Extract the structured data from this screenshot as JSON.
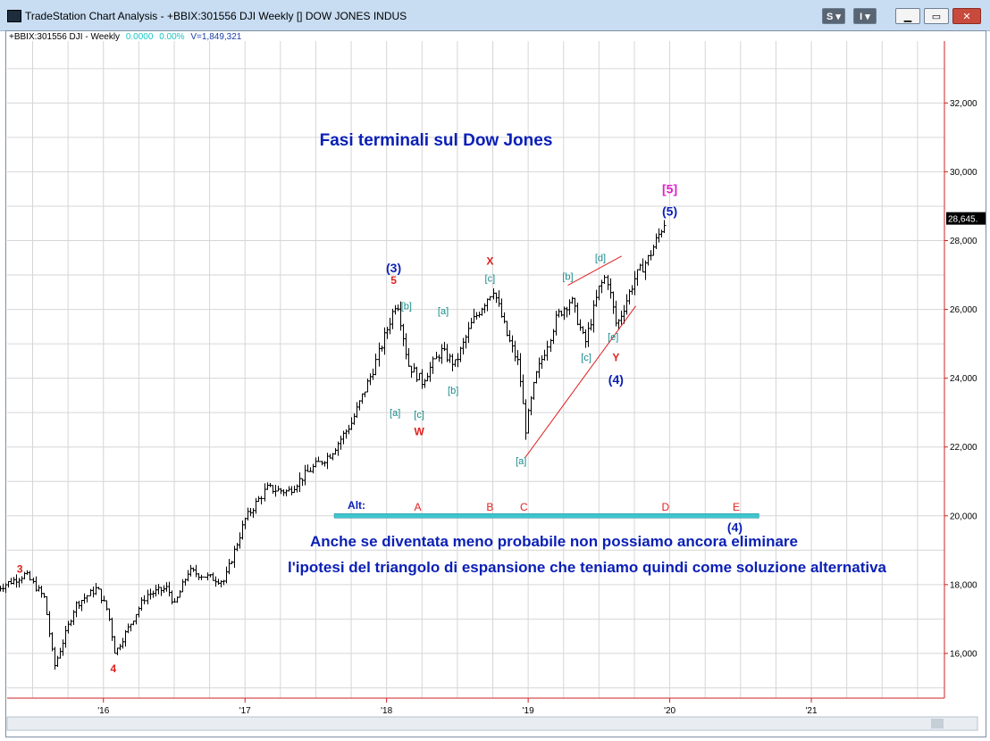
{
  "window": {
    "title": "TradeStation Chart Analysis - +BBIX:301556 DJI Weekly [] DOW JONES INDUS",
    "btn_s": "S",
    "btn_i": "I"
  },
  "header": {
    "symbol": "+BBIX:301556 DJI - Weekly",
    "change": "0.0000",
    "pct": "0.00%",
    "volume": "V=1,849,321"
  },
  "chart_data": {
    "type": "bar",
    "title": "Fasi terminali sul Dow Jones",
    "ylim": [
      14700,
      33800
    ],
    "y_ticks": [
      16000,
      18000,
      20000,
      22000,
      24000,
      26000,
      28000,
      30000,
      32000
    ],
    "y_tick_labels": [
      "16,000",
      "18,000",
      "20,000",
      "22,000",
      "24,000",
      "26,000",
      "28,000",
      "30,000",
      "32,000"
    ],
    "x_ticks": [
      2016,
      2017,
      2018,
      2019,
      2020,
      2021
    ],
    "x_tick_labels": [
      "'16",
      "'17",
      "'18",
      "'19",
      "'20",
      "'21"
    ],
    "last_price_label": "28,645.",
    "last_price": 28645,
    "grid": true,
    "legend": "none",
    "series": [
      {
        "anchors": [
          [
            2015.25,
            17900
          ],
          [
            2015.45,
            18300
          ],
          [
            2015.58,
            17600
          ],
          [
            2015.65,
            15600
          ],
          [
            2015.8,
            17400
          ],
          [
            2015.95,
            17900
          ],
          [
            2016.03,
            17200
          ],
          [
            2016.08,
            16000
          ],
          [
            2016.13,
            16400
          ],
          [
            2016.3,
            17700
          ],
          [
            2016.45,
            17900
          ],
          [
            2016.5,
            17400
          ],
          [
            2016.6,
            18400
          ],
          [
            2016.75,
            18200
          ],
          [
            2016.85,
            18100
          ],
          [
            2017.0,
            19900
          ],
          [
            2017.15,
            20800
          ],
          [
            2017.3,
            20700
          ],
          [
            2017.45,
            21300
          ],
          [
            2017.6,
            21800
          ],
          [
            2017.75,
            22700
          ],
          [
            2017.9,
            24200
          ],
          [
            2018.07,
            26300
          ],
          [
            2018.15,
            24400
          ],
          [
            2018.25,
            23900
          ],
          [
            2018.38,
            24800
          ],
          [
            2018.48,
            24400
          ],
          [
            2018.6,
            25600
          ],
          [
            2018.75,
            26600
          ],
          [
            2018.85,
            25200
          ],
          [
            2018.93,
            24400
          ],
          [
            2018.98,
            22500
          ],
          [
            2019.05,
            24000
          ],
          [
            2019.2,
            25800
          ],
          [
            2019.3,
            26300
          ],
          [
            2019.4,
            25000
          ],
          [
            2019.5,
            26600
          ],
          [
            2019.55,
            27000
          ],
          [
            2019.62,
            25500
          ],
          [
            2019.75,
            26900
          ],
          [
            2019.85,
            27500
          ],
          [
            2019.97,
            28600
          ]
        ]
      }
    ],
    "wave_labels": [
      {
        "text": "3",
        "color": "#e0201e",
        "x": 2015.41,
        "y": 18450
      },
      {
        "text": "4",
        "color": "#e0201e",
        "x": 2016.07,
        "y": 15550
      },
      {
        "text": "5",
        "color": "#e0201e",
        "x": 2018.05,
        "y": 26850
      },
      {
        "text": "(3)",
        "color": "#0a1fb5",
        "x": 2018.05,
        "y": 27200
      },
      {
        "text": "[b]",
        "color": "#178c8a",
        "x": 2018.14,
        "y": 26100
      },
      {
        "text": "[a]",
        "color": "#178c8a",
        "x": 2018.06,
        "y": 23000
      },
      {
        "text": "[c]",
        "color": "#178c8a",
        "x": 2018.23,
        "y": 22950
      },
      {
        "text": "W",
        "color": "#e0201e",
        "x": 2018.23,
        "y": 22450
      },
      {
        "text": "[a]",
        "color": "#178c8a",
        "x": 2018.4,
        "y": 25950
      },
      {
        "text": "[b]",
        "color": "#178c8a",
        "x": 2018.47,
        "y": 23650
      },
      {
        "text": "X",
        "color": "#e0201e",
        "x": 2018.73,
        "y": 27400
      },
      {
        "text": "[c]",
        "color": "#178c8a",
        "x": 2018.73,
        "y": 26900
      },
      {
        "text": "[a]",
        "color": "#178c8a",
        "x": 2018.95,
        "y": 21600
      },
      {
        "text": "[b]",
        "color": "#178c8a",
        "x": 2019.28,
        "y": 26950
      },
      {
        "text": "[d]",
        "color": "#178c8a",
        "x": 2019.51,
        "y": 27500
      },
      {
        "text": "[c]",
        "color": "#178c8a",
        "x": 2019.41,
        "y": 24600
      },
      {
        "text": "[e]",
        "color": "#178c8a",
        "x": 2019.6,
        "y": 25200
      },
      {
        "text": "Y",
        "color": "#e0201e",
        "x": 2019.62,
        "y": 24600
      },
      {
        "text": "(4)",
        "color": "#0a1fb5",
        "x": 2019.62,
        "y": 23950
      },
      {
        "text": "[5]",
        "color": "#e020c8",
        "x": 2020.0,
        "y": 29500
      },
      {
        "text": "(5)",
        "color": "#0a1fb5",
        "x": 2020.0,
        "y": 28850
      }
    ],
    "trendlines": [
      {
        "color": "#e0201e",
        "from": [
          2018.98,
          21700
        ],
        "to": [
          2019.76,
          26100
        ]
      },
      {
        "color": "#e0201e",
        "from": [
          2019.28,
          26700
        ],
        "to": [
          2019.66,
          27550
        ]
      }
    ],
    "alt_band": {
      "label": "Alt:",
      "x_start": 2017.63,
      "x_end": 2020.63,
      "y": 20000,
      "fill": "#3ec5cf",
      "letters": [
        {
          "text": "A",
          "x": 2018.22
        },
        {
          "text": "B",
          "x": 2018.73
        },
        {
          "text": "C",
          "x": 2018.97
        },
        {
          "text": "D",
          "x": 2019.97
        },
        {
          "text": "E",
          "x": 2020.47
        }
      ],
      "sub_label": {
        "text": "(4)",
        "x": 2020.46,
        "y": 19650,
        "color": "#0a1fb5"
      }
    },
    "annotations": [
      {
        "text": "Anche se diventata meno probabile non possiamo ancora eliminare",
        "x": 2018.55,
        "y": 18950
      },
      {
        "text": "l'ipotesi del triangolo di espansione che teniamo quindi come soluzione alternativa",
        "x": 2018.55,
        "y": 18200
      }
    ]
  }
}
